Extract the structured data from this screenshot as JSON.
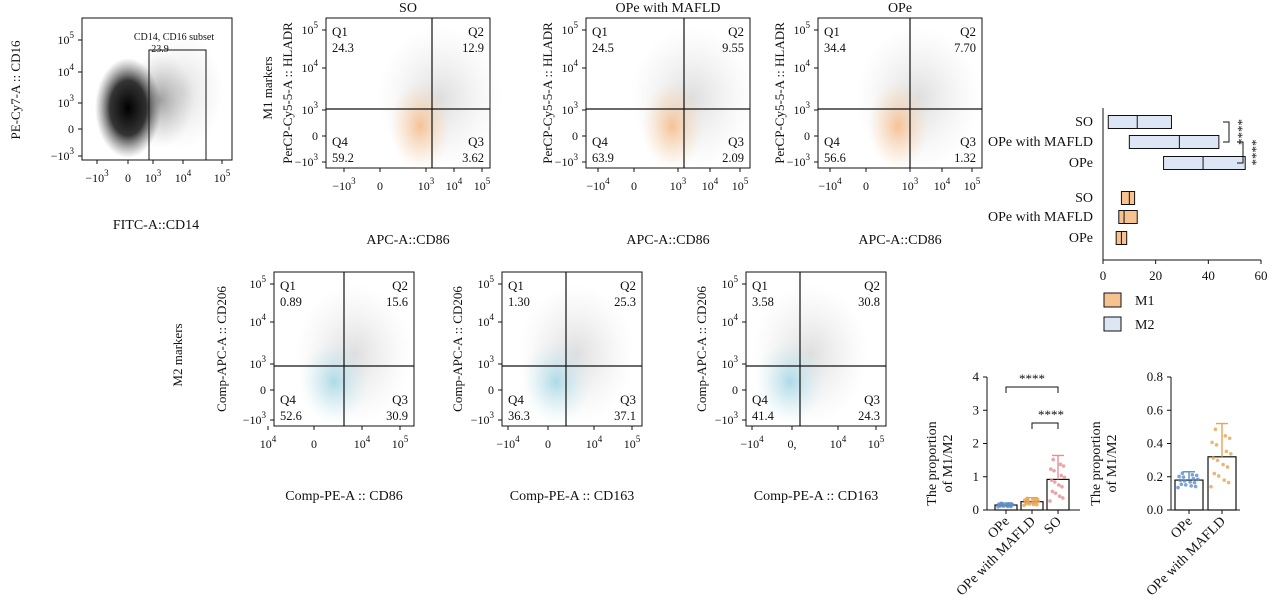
{
  "gate": {
    "name": "CD14, CD16 subset",
    "value": "23.9",
    "ylabel": "PE-Cy7-A :: CD16",
    "xlabel": "FITC-A::CD14",
    "yticks": [
      "10^5",
      "10^4",
      "10^3",
      "0",
      "-10^3"
    ],
    "xticks": [
      "-10^3",
      "0",
      "10^3",
      "10^4",
      "10^5"
    ]
  },
  "m1": {
    "side_label": "M1 markers",
    "ylabel": "PerCP-Cy5-5-A :: HLADR",
    "xlabel": "APC-A::CD86",
    "yticks": [
      "10^5",
      "10^4",
      "10^3",
      "0",
      "-10^3"
    ],
    "plots": [
      {
        "title": "SO",
        "q1": "24.3",
        "q2": "12.9",
        "q3": "3.62",
        "q4": "59.2",
        "xticks": [
          "-10^3",
          "0",
          "10^3",
          "10^4",
          "10^5"
        ]
      },
      {
        "title": "OPe with MAFLD",
        "q1": "24.5",
        "q2": "9.55",
        "q3": "2.09",
        "q4": "63.9",
        "xticks": [
          "-10^4",
          "0",
          "10^3",
          "10^4",
          "10^5"
        ]
      },
      {
        "title": "OPe",
        "q1": "34.4",
        "q2": "7.70",
        "q3": "1.32",
        "q4": "56.6",
        "xticks": [
          "-10^4",
          "0",
          "10^3",
          "10^4",
          "10^5"
        ]
      }
    ]
  },
  "m2": {
    "side_label": "M2 markers",
    "ylabel": "Comp-APC-A :: CD206",
    "yticks": [
      "10^5",
      "10^4",
      "10^3",
      "0",
      "-10^3"
    ],
    "plots": [
      {
        "xlabel": "Comp-PE-A :: CD86",
        "q1": "0.89",
        "q2": "15.6",
        "q3": "30.9",
        "q4": "52.6",
        "xticks": [
          "10^4",
          "0",
          "10^4",
          "10^5"
        ]
      },
      {
        "xlabel": "Comp-PE-A :: CD163",
        "q1": "1.30",
        "q2": "25.3",
        "q3": "37.1",
        "q4": "36.3",
        "xticks": [
          "-10^4",
          "0",
          "10^4",
          "10^5"
        ]
      },
      {
        "xlabel": "Comp-PE-A :: CD163",
        "q1": "3.58",
        "q2": "30.8",
        "q3": "24.3",
        "q4": "41.4",
        "xticks": [
          "-10^4",
          "0,",
          "10^4",
          "10^5"
        ]
      }
    ]
  },
  "chart_data": [
    {
      "type": "box",
      "orientation": "horizontal",
      "categories": [
        "SO",
        "OPe with MAFLD",
        "OPe"
      ],
      "series": [
        {
          "name": "M2",
          "color": "#dde6f4",
          "boxes": [
            {
              "q1": 2,
              "median": 13,
              "q3": 26
            },
            {
              "q1": 10,
              "median": 29,
              "q3": 44
            },
            {
              "q1": 23,
              "median": 38,
              "q3": 54
            }
          ]
        },
        {
          "name": "M1",
          "color": "#f6c28f",
          "boxes": [
            {
              "q1": 7,
              "median": 10,
              "q3": 12
            },
            {
              "q1": 6,
              "median": 8,
              "q3": 13
            },
            {
              "q1": 5,
              "median": 7,
              "q3": 9
            }
          ]
        }
      ],
      "xlim": [
        0,
        60
      ],
      "xticks": [
        "0",
        "20",
        "40",
        "60"
      ],
      "significance": [
        {
          "pair": [
            "SO",
            "OPe with MAFLD"
          ],
          "label": "****"
        },
        {
          "pair": [
            "OPe with MAFLD",
            "OPe"
          ],
          "label": "****"
        }
      ],
      "legend": [
        "M1",
        "M2"
      ],
      "legend_position": "bottom"
    },
    {
      "type": "bar",
      "categories": [
        "OPe",
        "OPe with MAFLD",
        "SO"
      ],
      "values": [
        0.15,
        0.25,
        0.92
      ],
      "errors": [
        0.06,
        0.12,
        0.72
      ],
      "colors": [
        "#5b8cc8",
        "#e9a24f",
        "#e58f93"
      ],
      "ylabel": "The proportion of M1/M2",
      "ylim": [
        0,
        4
      ],
      "yticks": [
        "0",
        "1",
        "2",
        "3",
        "4"
      ],
      "significance": [
        {
          "pair": [
            "OPe",
            "SO"
          ],
          "label": "****"
        },
        {
          "pair": [
            "OPe with MAFLD",
            "SO"
          ],
          "label": "****"
        }
      ]
    },
    {
      "type": "bar",
      "categories": [
        "OPe",
        "OPe with MAFLD"
      ],
      "values": [
        0.18,
        0.32
      ],
      "errors": [
        0.05,
        0.2
      ],
      "colors": [
        "#5b8cc8",
        "#e9a24f"
      ],
      "ylabel": "The proportion of M1/M2",
      "ylim": [
        0,
        0.8
      ],
      "yticks": [
        "0.0",
        "0.2",
        "0.4",
        "0.6",
        "0.8"
      ]
    }
  ]
}
